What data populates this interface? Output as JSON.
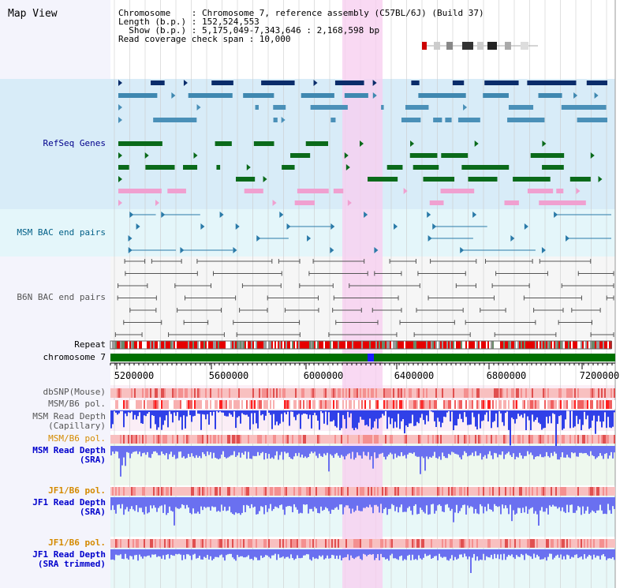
{
  "title": "Map View",
  "info": {
    "chromosome": "Chromosome    : Chromosome 7, reference assembly (C57BL/6J) (Build 37)",
    "length": "Length (b.p.) : 152,524,553",
    "show": "  Show (b.p.) : 5,175,049-7,343,646 : 2,168,598 bp",
    "coverage": "Read coverage check span : 10,000"
  },
  "tracks": {
    "refseq": "RefSeq Genes",
    "msm_bac": "MSM BAC end pairs",
    "b6n_bac": "B6N BAC end pairs",
    "repeat": "Repeat",
    "chromosome": "chromosome 7",
    "dbsnp": "dbSNP(Mouse)",
    "msm_b6_pol_1": "MSM/B6 pol.",
    "msm_depth_cap": "MSM Read Depth\n(Capillary)",
    "msm_b6_pol_2": "MSM/B6 pol.",
    "msm_depth_sra": "MSM Read Depth\n(SRA)",
    "jf1_b6_pol_1": "JF1/B6 pol.",
    "jf1_depth_sra": "JF1 Read Depth\n(SRA)",
    "jf1_b6_pol_2": "JF1/B6 pol.",
    "jf1_depth_trim": "JF1 Read Depth\n(SRA trimmed)"
  },
  "axis_ticks": [
    "5200000",
    "5600000",
    "6000000",
    "6400000",
    "6800000",
    "7200000"
  ],
  "colors": {
    "refseq_label": "#00008b",
    "msm_label": "#005f87",
    "b6n_label": "#555555",
    "pol_orange": "#d48a00",
    "depth_blue": "#0000cc",
    "highlight": "#f8d0f0"
  }
}
